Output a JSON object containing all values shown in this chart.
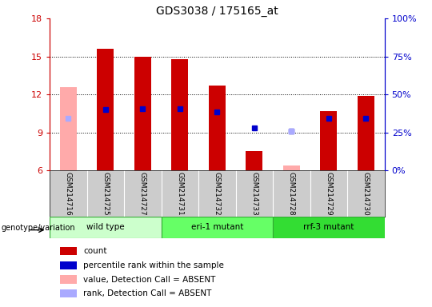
{
  "title": "GDS3038 / 175165_at",
  "samples": [
    "GSM214716",
    "GSM214725",
    "GSM214727",
    "GSM214731",
    "GSM214732",
    "GSM214733",
    "GSM214728",
    "GSM214729",
    "GSM214730"
  ],
  "groups": [
    {
      "label": "wild type",
      "indices": [
        0,
        1,
        2
      ],
      "color": "#ccffcc",
      "edge": "#44aa44"
    },
    {
      "label": "eri-1 mutant",
      "indices": [
        3,
        4,
        5
      ],
      "color": "#66ff66",
      "edge": "#44aa44"
    },
    {
      "label": "rrf-3 mutant",
      "indices": [
        6,
        7,
        8
      ],
      "color": "#33dd33",
      "edge": "#44aa44"
    }
  ],
  "ylim": [
    6,
    18
  ],
  "yticks": [
    6,
    9,
    12,
    15,
    18
  ],
  "y2lim": [
    0,
    100
  ],
  "y2ticks": [
    0,
    25,
    50,
    75,
    100
  ],
  "y2ticklabels": [
    "0%",
    "25%",
    "50%",
    "75%",
    "100%"
  ],
  "count_values": [
    null,
    15.6,
    15.0,
    14.8,
    12.7,
    7.5,
    null,
    10.7,
    11.9
  ],
  "rank_values": [
    null,
    10.8,
    10.9,
    10.9,
    10.6,
    9.35,
    9.1,
    10.1,
    10.1
  ],
  "absent_value_values": [
    12.6,
    null,
    null,
    null,
    null,
    null,
    6.4,
    null,
    null
  ],
  "absent_rank_values": [
    10.1,
    null,
    null,
    null,
    null,
    null,
    9.1,
    null,
    null
  ],
  "count_color": "#cc0000",
  "rank_color": "#0000cc",
  "absent_value_color": "#ffaaaa",
  "absent_rank_color": "#aaaaff",
  "bar_width": 0.45,
  "legend_items": [
    {
      "label": "count",
      "color": "#cc0000"
    },
    {
      "label": "percentile rank within the sample",
      "color": "#0000cc"
    },
    {
      "label": "value, Detection Call = ABSENT",
      "color": "#ffaaaa"
    },
    {
      "label": "rank, Detection Call = ABSENT",
      "color": "#aaaaff"
    }
  ],
  "geno_label": "genotype/variation",
  "figsize": [
    5.4,
    3.84
  ],
  "dpi": 100
}
